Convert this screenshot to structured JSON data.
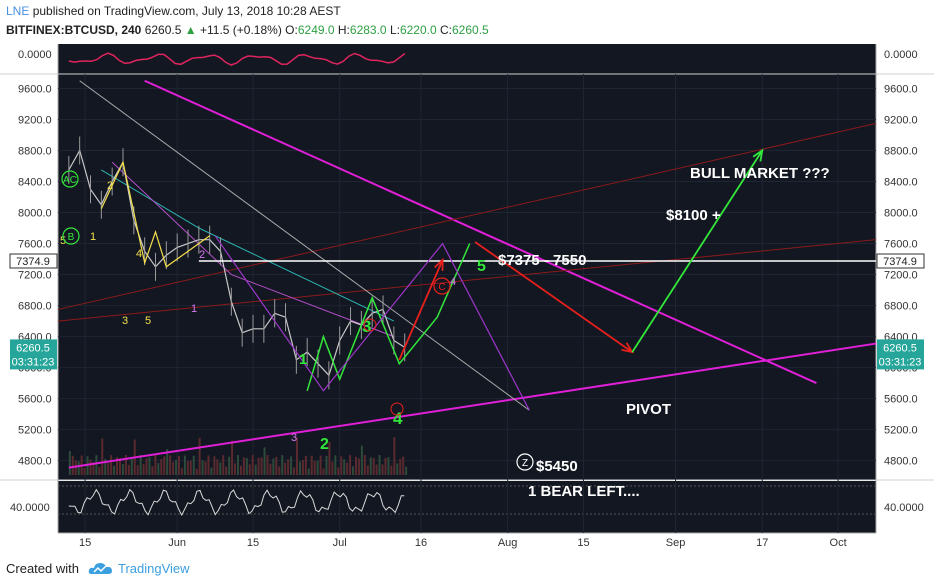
{
  "header": {
    "author": "LNE",
    "published_text": "published on TradingView.com, July 13, 2018 10:28 AEST",
    "symbol": "BITFINEX:BTCUSD, 240",
    "last": "6260.5",
    "change": "+11.5 (+0.18%)",
    "o_label": "O:",
    "o": "6249.0",
    "h_label": "H:",
    "h": "6283.0",
    "l_label": "L:",
    "l": "6220.0",
    "c_label": "C:",
    "c": "6260.5"
  },
  "footer": {
    "created_with": "Created with",
    "brand": "TradingView"
  },
  "colors": {
    "magenta": "#e11fd8",
    "green": "#33e63a",
    "red": "#e8201c",
    "yellow": "#f5e04a",
    "bg": "#131722"
  },
  "chart_data": {
    "type": "line",
    "title": "",
    "y_ticks": [
      "9600.0",
      "9200.0",
      "8800.0",
      "8400.0",
      "8000.0",
      "7600.0",
      "7200.0",
      "6800.0",
      "6400.0",
      "6000.0",
      "5600.0",
      "5200.0",
      "4800.0"
    ],
    "ylim": [
      4550,
      9800
    ],
    "x_ticks": [
      "15",
      "Jun",
      "15",
      "Jul",
      "16",
      "Aug",
      "15",
      "Sep",
      "17",
      "Oct"
    ],
    "price_tags": {
      "level": "7374.9",
      "last": "6260.5",
      "countdown": "03:31:23"
    },
    "top_indicator_value": "0.0000",
    "rsi_value": "40.0000",
    "price_path": [
      {
        "d": "2018-05-12",
        "v": 8550
      },
      {
        "d": "2018-05-14",
        "v": 8800
      },
      {
        "d": "2018-05-16",
        "v": 8300
      },
      {
        "d": "2018-05-18",
        "v": 8100
      },
      {
        "d": "2018-05-20",
        "v": 8400
      },
      {
        "d": "2018-05-22",
        "v": 8650
      },
      {
        "d": "2018-05-24",
        "v": 7900
      },
      {
        "d": "2018-05-26",
        "v": 7500
      },
      {
        "d": "2018-05-28",
        "v": 7300
      },
      {
        "d": "2018-05-30",
        "v": 7450
      },
      {
        "d": "2018-06-01",
        "v": 7550
      },
      {
        "d": "2018-06-03",
        "v": 7600
      },
      {
        "d": "2018-06-05",
        "v": 7650
      },
      {
        "d": "2018-06-07",
        "v": 7650
      },
      {
        "d": "2018-06-09",
        "v": 7500
      },
      {
        "d": "2018-06-11",
        "v": 6850
      },
      {
        "d": "2018-06-13",
        "v": 6450
      },
      {
        "d": "2018-06-15",
        "v": 6500
      },
      {
        "d": "2018-06-17",
        "v": 6500
      },
      {
        "d": "2018-06-19",
        "v": 6700
      },
      {
        "d": "2018-06-21",
        "v": 6650
      },
      {
        "d": "2018-06-23",
        "v": 6100
      },
      {
        "d": "2018-06-25",
        "v": 6200
      },
      {
        "d": "2018-06-27",
        "v": 6050
      },
      {
        "d": "2018-06-29",
        "v": 5900
      },
      {
        "d": "2018-07-01",
        "v": 6350
      },
      {
        "d": "2018-07-03",
        "v": 6600
      },
      {
        "d": "2018-07-05",
        "v": 6550
      },
      {
        "d": "2018-07-07",
        "v": 6700
      },
      {
        "d": "2018-07-09",
        "v": 6750
      },
      {
        "d": "2018-07-11",
        "v": 6350
      },
      {
        "d": "2018-07-13",
        "v": 6260
      }
    ],
    "series": [
      {
        "name": "",
        "values": [
          {
            "d": "2018-05-18",
            "v": 8550
          },
          {
            "d": "2018-06-05",
            "v": 7800
          },
          {
            "d": "2018-07-11",
            "v": 6600
          }
        ]
      },
      {
        "name": "",
        "values": [
          {
            "d": "2018-05-20",
            "v": 8650
          },
          {
            "d": "2018-06-11",
            "v": 7200
          },
          {
            "d": "2018-07-11",
            "v": 6400
          }
        ]
      }
    ],
    "annotations": {
      "big_text": [
        "BULL MARKET ???",
        "$8100 +",
        "$7375 - 7550",
        "PIVOT",
        "$5450",
        "1 BEAR LEFT...."
      ],
      "green_wave": [
        "1",
        "2",
        "3",
        "4",
        "5"
      ],
      "yellow_wave": [
        "2",
        "1",
        "3",
        "4",
        "5"
      ],
      "purple_wave": [
        "2",
        "1",
        "3",
        "4"
      ],
      "circled": [
        "AC",
        "B",
        "C",
        "Z"
      ],
      "misc": [
        "5"
      ]
    }
  }
}
